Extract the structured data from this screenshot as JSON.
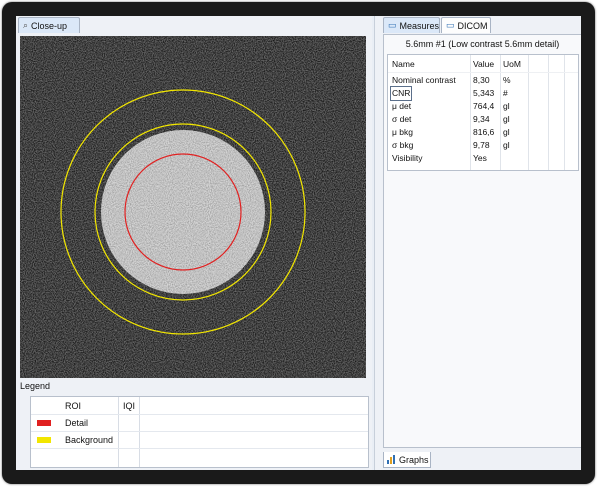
{
  "left_panel": {
    "tab_label": "Close-up",
    "tab_icon": "search-icon",
    "legend": {
      "title": "Legend",
      "columns": [
        "ROI",
        "IQI"
      ],
      "rows": [
        {
          "label": "Detail",
          "color": "#e02020"
        },
        {
          "label": "Background",
          "color": "#f2e600"
        }
      ]
    }
  },
  "right_panel": {
    "tabs": [
      {
        "label": "Measures",
        "icon": "window-icon",
        "active": true
      },
      {
        "label": "DICOM",
        "icon": "window-icon",
        "active": false
      }
    ],
    "header": "5.6mm #1 (Low contrast 5.6mm detail)",
    "table": {
      "columns": [
        "Name",
        "Value",
        "UoM"
      ],
      "rows": [
        {
          "name": "Nominal contrast",
          "value": "8,30",
          "uom": "%"
        },
        {
          "name": "CNR",
          "value": "5,343",
          "uom": "#"
        },
        {
          "name": "μ det",
          "value": "764,4",
          "uom": "gl"
        },
        {
          "name": "σ det",
          "value": "9,34",
          "uom": "gl"
        },
        {
          "name": "μ bkg",
          "value": "816,6",
          "uom": "gl"
        },
        {
          "name": "σ bkg",
          "value": "9,78",
          "uom": "gl"
        },
        {
          "name": "Visibility",
          "value": "Yes",
          "uom": ""
        }
      ]
    },
    "bottom_tab": {
      "label": "Graphs",
      "icon": "chart-icon"
    }
  },
  "colors": {
    "detail_roi": "#e02020",
    "background_roi": "#f2e600"
  }
}
